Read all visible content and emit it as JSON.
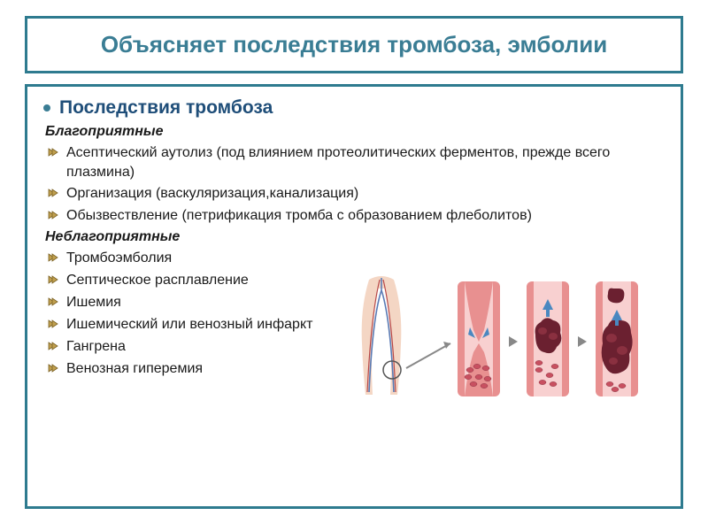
{
  "colors": {
    "border": "#2e7b8f",
    "title_text": "#3a7d94",
    "heading_text": "#1f4e79",
    "body_text": "#1a1a1a",
    "bullet_dot": "#3a7d94",
    "chevron_fill": "#c0a050",
    "chevron_stroke": "#7a6020",
    "skin": "#f4d6c4",
    "vein_blue": "#5a7bb5",
    "artery_red": "#b84848",
    "vessel_wall": "#e89090",
    "vessel_inner": "#f8d0d0",
    "clot_dark": "#6b2030",
    "clot_light": "#c85060",
    "arrow_gray": "#888888",
    "arrow_blue": "#4a88c0"
  },
  "title": "Объясняет последствия тромбоза, эмболии",
  "heading": "Последствия  тромбоза",
  "favorable_label": "Благоприятные",
  "favorable_items": [
    "Асептический аутолиз (под влиянием протеолитических ферментов, прежде всего плазмина)",
    "Организация (васкуляризация,канализация)",
    "Обызвествление (петрификация тромба с образованием флеболитов)"
  ],
  "unfavorable_label": "Неблагоприятные",
  "unfavorable_items": [
    "Тромбоэмболия",
    "Септическое расплавление",
    "Ишемия",
    "Ишемический или венозный инфаркт",
    "Гангрена",
    "Венозная гиперемия"
  ],
  "fontsize": {
    "title": 26,
    "heading": 21,
    "subheading": 16,
    "body": 16
  }
}
